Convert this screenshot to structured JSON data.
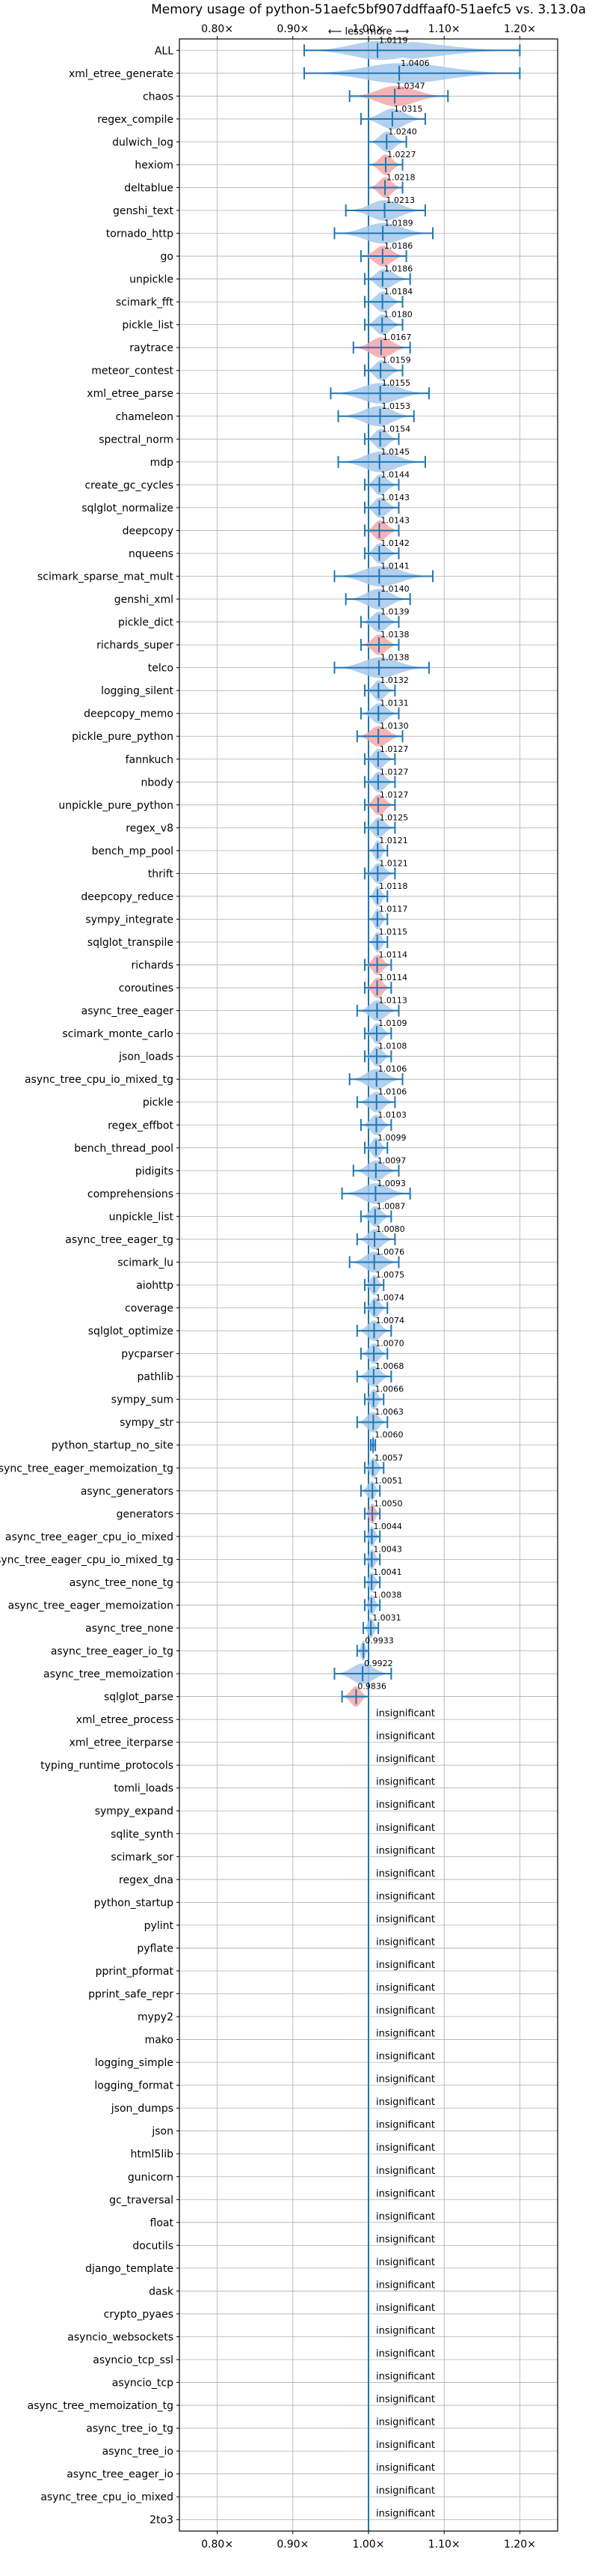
{
  "chart_data": {
    "type": "violin",
    "title": "Memory usage of python-51aefc5bf907ddffaaf0-51aefc5 vs. 3.13.0a",
    "direction_label": "⟵ less    more ⟶",
    "xlim": [
      0.75,
      1.25
    ],
    "xticks": [
      0.8,
      0.9,
      1.0,
      1.1,
      1.2
    ],
    "xtick_labels": [
      "0.80×",
      "0.90×",
      "1.00×",
      "1.10×",
      "1.20×"
    ],
    "insignificant_label": "insignificant",
    "colors": {
      "better": "#a6c8ea",
      "worse": "#f4a6a8",
      "line": "#1f77b4",
      "grid": "#b0b0b0"
    },
    "benchmarks": [
      {
        "name": "ALL",
        "value": 1.0119,
        "lo": 0.915,
        "hi": 1.2,
        "worse": false
      },
      {
        "name": "xml_etree_generate",
        "value": 1.0406,
        "lo": 0.915,
        "hi": 1.2,
        "worse": false
      },
      {
        "name": "chaos",
        "value": 1.0347,
        "lo": 0.975,
        "hi": 1.105,
        "worse": true
      },
      {
        "name": "regex_compile",
        "value": 1.0315,
        "lo": 0.99,
        "hi": 1.075,
        "worse": false
      },
      {
        "name": "dulwich_log",
        "value": 1.024,
        "lo": 1.0,
        "hi": 1.05,
        "worse": false
      },
      {
        "name": "hexiom",
        "value": 1.0227,
        "lo": 1.0,
        "hi": 1.045,
        "worse": true
      },
      {
        "name": "deltablue",
        "value": 1.0218,
        "lo": 1.0,
        "hi": 1.045,
        "worse": true
      },
      {
        "name": "genshi_text",
        "value": 1.0213,
        "lo": 0.97,
        "hi": 1.075,
        "worse": false
      },
      {
        "name": "tornado_http",
        "value": 1.0189,
        "lo": 0.955,
        "hi": 1.085,
        "worse": false
      },
      {
        "name": "go",
        "value": 1.0186,
        "lo": 0.99,
        "hi": 1.05,
        "worse": true
      },
      {
        "name": "unpickle",
        "value": 1.0186,
        "lo": 0.995,
        "hi": 1.055,
        "worse": false
      },
      {
        "name": "scimark_fft",
        "value": 1.0184,
        "lo": 0.995,
        "hi": 1.045,
        "worse": false
      },
      {
        "name": "pickle_list",
        "value": 1.018,
        "lo": 0.995,
        "hi": 1.045,
        "worse": false
      },
      {
        "name": "raytrace",
        "value": 1.0167,
        "lo": 0.98,
        "hi": 1.055,
        "worse": true
      },
      {
        "name": "meteor_contest",
        "value": 1.0159,
        "lo": 0.995,
        "hi": 1.045,
        "worse": false
      },
      {
        "name": "xml_etree_parse",
        "value": 1.0155,
        "lo": 0.95,
        "hi": 1.08,
        "worse": false
      },
      {
        "name": "chameleon",
        "value": 1.0153,
        "lo": 0.96,
        "hi": 1.06,
        "worse": false
      },
      {
        "name": "spectral_norm",
        "value": 1.0154,
        "lo": 0.995,
        "hi": 1.04,
        "worse": false
      },
      {
        "name": "mdp",
        "value": 1.0145,
        "lo": 0.96,
        "hi": 1.075,
        "worse": false
      },
      {
        "name": "create_gc_cycles",
        "value": 1.0144,
        "lo": 0.995,
        "hi": 1.04,
        "worse": false
      },
      {
        "name": "sqlglot_normalize",
        "value": 1.0143,
        "lo": 0.995,
        "hi": 1.04,
        "worse": false
      },
      {
        "name": "deepcopy",
        "value": 1.0143,
        "lo": 0.995,
        "hi": 1.04,
        "worse": true
      },
      {
        "name": "nqueens",
        "value": 1.0142,
        "lo": 0.995,
        "hi": 1.04,
        "worse": false
      },
      {
        "name": "scimark_sparse_mat_mult",
        "value": 1.0141,
        "lo": 0.955,
        "hi": 1.085,
        "worse": false
      },
      {
        "name": "genshi_xml",
        "value": 1.014,
        "lo": 0.97,
        "hi": 1.055,
        "worse": false
      },
      {
        "name": "pickle_dict",
        "value": 1.0139,
        "lo": 0.99,
        "hi": 1.04,
        "worse": false
      },
      {
        "name": "richards_super",
        "value": 1.0138,
        "lo": 0.99,
        "hi": 1.04,
        "worse": true
      },
      {
        "name": "telco",
        "value": 1.0138,
        "lo": 0.955,
        "hi": 1.08,
        "worse": false
      },
      {
        "name": "logging_silent",
        "value": 1.0132,
        "lo": 0.995,
        "hi": 1.035,
        "worse": false
      },
      {
        "name": "deepcopy_memo",
        "value": 1.0131,
        "lo": 0.99,
        "hi": 1.04,
        "worse": false
      },
      {
        "name": "pickle_pure_python",
        "value": 1.013,
        "lo": 0.985,
        "hi": 1.045,
        "worse": true
      },
      {
        "name": "fannkuch",
        "value": 1.0127,
        "lo": 0.995,
        "hi": 1.035,
        "worse": false
      },
      {
        "name": "nbody",
        "value": 1.0127,
        "lo": 0.995,
        "hi": 1.035,
        "worse": false
      },
      {
        "name": "unpickle_pure_python",
        "value": 1.0127,
        "lo": 0.995,
        "hi": 1.035,
        "worse": true
      },
      {
        "name": "regex_v8",
        "value": 1.0125,
        "lo": 0.995,
        "hi": 1.035,
        "worse": false
      },
      {
        "name": "bench_mp_pool",
        "value": 1.0121,
        "lo": 1.0,
        "hi": 1.025,
        "worse": false
      },
      {
        "name": "thrift",
        "value": 1.0121,
        "lo": 0.995,
        "hi": 1.035,
        "worse": false
      },
      {
        "name": "deepcopy_reduce",
        "value": 1.0118,
        "lo": 1.0,
        "hi": 1.025,
        "worse": false
      },
      {
        "name": "sympy_integrate",
        "value": 1.0117,
        "lo": 1.0,
        "hi": 1.025,
        "worse": false
      },
      {
        "name": "sqlglot_transpile",
        "value": 1.0115,
        "lo": 1.0,
        "hi": 1.025,
        "worse": false
      },
      {
        "name": "richards",
        "value": 1.0114,
        "lo": 0.995,
        "hi": 1.03,
        "worse": true
      },
      {
        "name": "coroutines",
        "value": 1.0114,
        "lo": 0.995,
        "hi": 1.03,
        "worse": true
      },
      {
        "name": "async_tree_eager",
        "value": 1.0113,
        "lo": 0.985,
        "hi": 1.04,
        "worse": false
      },
      {
        "name": "scimark_monte_carlo",
        "value": 1.0109,
        "lo": 0.995,
        "hi": 1.03,
        "worse": false
      },
      {
        "name": "json_loads",
        "value": 1.0108,
        "lo": 0.995,
        "hi": 1.03,
        "worse": false
      },
      {
        "name": "async_tree_cpu_io_mixed_tg",
        "value": 1.0106,
        "lo": 0.975,
        "hi": 1.045,
        "worse": false
      },
      {
        "name": "pickle",
        "value": 1.0106,
        "lo": 0.985,
        "hi": 1.035,
        "worse": false
      },
      {
        "name": "regex_effbot",
        "value": 1.0103,
        "lo": 0.99,
        "hi": 1.03,
        "worse": false
      },
      {
        "name": "bench_thread_pool",
        "value": 1.0099,
        "lo": 0.995,
        "hi": 1.025,
        "worse": false
      },
      {
        "name": "pidigits",
        "value": 1.0097,
        "lo": 0.98,
        "hi": 1.04,
        "worse": false
      },
      {
        "name": "comprehensions",
        "value": 1.0093,
        "lo": 0.965,
        "hi": 1.055,
        "worse": false
      },
      {
        "name": "unpickle_list",
        "value": 1.0087,
        "lo": 0.99,
        "hi": 1.03,
        "worse": false
      },
      {
        "name": "async_tree_eager_tg",
        "value": 1.008,
        "lo": 0.985,
        "hi": 1.035,
        "worse": false
      },
      {
        "name": "scimark_lu",
        "value": 1.0076,
        "lo": 0.975,
        "hi": 1.04,
        "worse": false
      },
      {
        "name": "aiohttp",
        "value": 1.0075,
        "lo": 0.995,
        "hi": 1.02,
        "worse": false
      },
      {
        "name": "coverage",
        "value": 1.0074,
        "lo": 0.995,
        "hi": 1.025,
        "worse": false
      },
      {
        "name": "sqlglot_optimize",
        "value": 1.0074,
        "lo": 0.985,
        "hi": 1.03,
        "worse": false
      },
      {
        "name": "pycparser",
        "value": 1.007,
        "lo": 0.99,
        "hi": 1.025,
        "worse": false
      },
      {
        "name": "pathlib",
        "value": 1.0068,
        "lo": 0.985,
        "hi": 1.03,
        "worse": false
      },
      {
        "name": "sympy_sum",
        "value": 1.0066,
        "lo": 0.995,
        "hi": 1.02,
        "worse": false
      },
      {
        "name": "sympy_str",
        "value": 1.0063,
        "lo": 0.985,
        "hi": 1.025,
        "worse": false
      },
      {
        "name": "python_startup_no_site",
        "value": 1.006,
        "lo": 1.003,
        "hi": 1.009,
        "worse": false
      },
      {
        "name": "async_tree_eager_memoization_tg",
        "value": 1.0057,
        "lo": 0.995,
        "hi": 1.02,
        "worse": false
      },
      {
        "name": "async_generators",
        "value": 1.0051,
        "lo": 0.99,
        "hi": 1.015,
        "worse": false
      },
      {
        "name": "generators",
        "value": 1.005,
        "lo": 0.995,
        "hi": 1.015,
        "worse": true
      },
      {
        "name": "async_tree_eager_cpu_io_mixed",
        "value": 1.0044,
        "lo": 0.995,
        "hi": 1.015,
        "worse": false
      },
      {
        "name": "async_tree_eager_cpu_io_mixed_tg",
        "value": 1.0043,
        "lo": 0.995,
        "hi": 1.015,
        "worse": false
      },
      {
        "name": "async_tree_none_tg",
        "value": 1.0041,
        "lo": 0.995,
        "hi": 1.015,
        "worse": false
      },
      {
        "name": "async_tree_eager_memoization",
        "value": 1.0038,
        "lo": 0.995,
        "hi": 1.015,
        "worse": false
      },
      {
        "name": "async_tree_none",
        "value": 1.0031,
        "lo": 0.993,
        "hi": 1.013,
        "worse": false
      },
      {
        "name": "async_tree_eager_io_tg",
        "value": 0.9933,
        "lo": 0.985,
        "hi": 1.0,
        "worse": false
      },
      {
        "name": "async_tree_memoization",
        "value": 0.9922,
        "lo": 0.955,
        "hi": 1.03,
        "worse": false
      },
      {
        "name": "sqlglot_parse",
        "value": 0.9836,
        "lo": 0.965,
        "hi": 1.0,
        "worse": true
      },
      {
        "name": "xml_etree_process",
        "value": null
      },
      {
        "name": "xml_etree_iterparse",
        "value": null
      },
      {
        "name": "typing_runtime_protocols",
        "value": null
      },
      {
        "name": "tomli_loads",
        "value": null
      },
      {
        "name": "sympy_expand",
        "value": null
      },
      {
        "name": "sqlite_synth",
        "value": null
      },
      {
        "name": "scimark_sor",
        "value": null
      },
      {
        "name": "regex_dna",
        "value": null
      },
      {
        "name": "python_startup",
        "value": null
      },
      {
        "name": "pylint",
        "value": null
      },
      {
        "name": "pyflate",
        "value": null
      },
      {
        "name": "pprint_pformat",
        "value": null
      },
      {
        "name": "pprint_safe_repr",
        "value": null
      },
      {
        "name": "mypy2",
        "value": null
      },
      {
        "name": "mako",
        "value": null
      },
      {
        "name": "logging_simple",
        "value": null
      },
      {
        "name": "logging_format",
        "value": null
      },
      {
        "name": "json_dumps",
        "value": null
      },
      {
        "name": "json",
        "value": null
      },
      {
        "name": "html5lib",
        "value": null
      },
      {
        "name": "gunicorn",
        "value": null
      },
      {
        "name": "gc_traversal",
        "value": null
      },
      {
        "name": "float",
        "value": null
      },
      {
        "name": "docutils",
        "value": null
      },
      {
        "name": "django_template",
        "value": null
      },
      {
        "name": "dask",
        "value": null
      },
      {
        "name": "crypto_pyaes",
        "value": null
      },
      {
        "name": "asyncio_websockets",
        "value": null
      },
      {
        "name": "asyncio_tcp_ssl",
        "value": null
      },
      {
        "name": "asyncio_tcp",
        "value": null
      },
      {
        "name": "async_tree_memoization_tg",
        "value": null
      },
      {
        "name": "async_tree_io_tg",
        "value": null
      },
      {
        "name": "async_tree_io",
        "value": null
      },
      {
        "name": "async_tree_eager_io",
        "value": null
      },
      {
        "name": "async_tree_cpu_io_mixed",
        "value": null
      },
      {
        "name": "2to3",
        "value": null
      }
    ]
  }
}
